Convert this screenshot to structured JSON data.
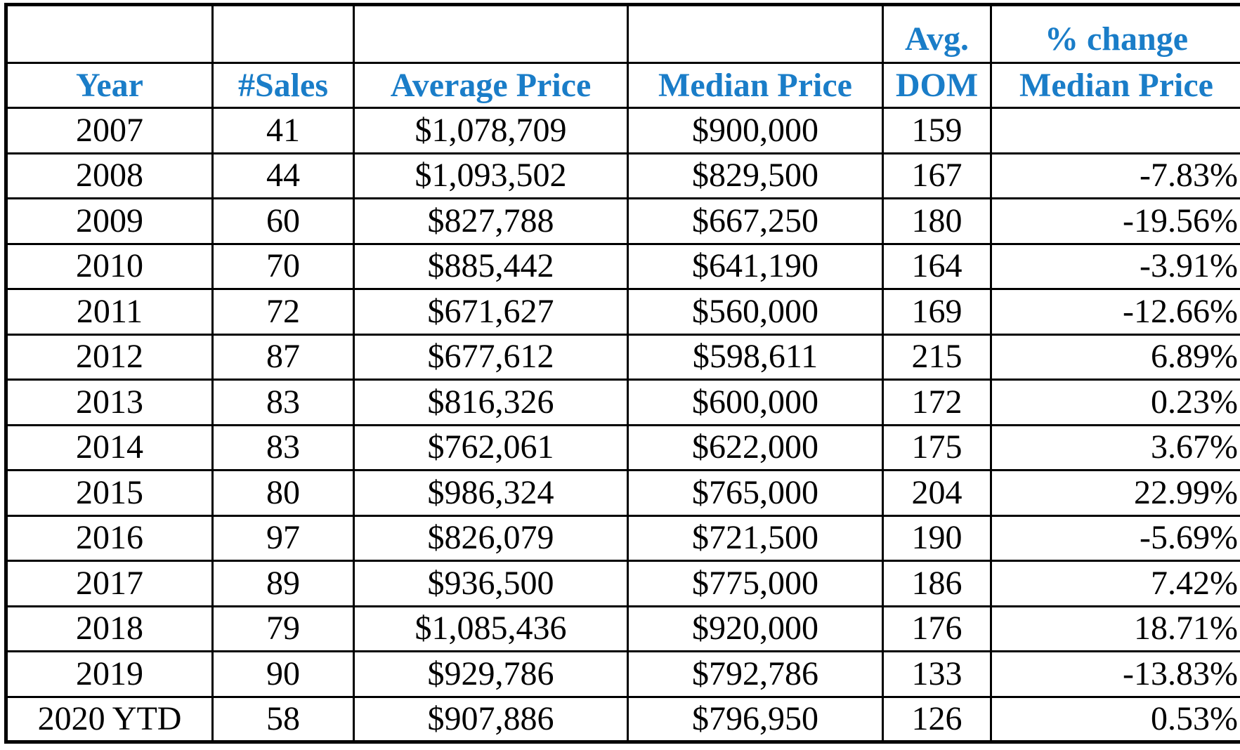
{
  "table": {
    "header_top": {
      "dom": "Avg.",
      "pct_change": "% change"
    },
    "header": {
      "year": "Year",
      "sales": "#Sales",
      "average_price": "Average Price",
      "median_price": "Median Price",
      "dom": "DOM",
      "pct_change": "Median Price"
    },
    "rows": [
      {
        "year": "2007",
        "sales": "41",
        "average_price": "$1,078,709",
        "median_price": "$900,000",
        "dom": "159",
        "pct_change": ""
      },
      {
        "year": "2008",
        "sales": "44",
        "average_price": "$1,093,502",
        "median_price": "$829,500",
        "dom": "167",
        "pct_change": "-7.83%"
      },
      {
        "year": "2009",
        "sales": "60",
        "average_price": "$827,788",
        "median_price": "$667,250",
        "dom": "180",
        "pct_change": "-19.56%"
      },
      {
        "year": "2010",
        "sales": "70",
        "average_price": "$885,442",
        "median_price": "$641,190",
        "dom": "164",
        "pct_change": "-3.91%"
      },
      {
        "year": "2011",
        "sales": "72",
        "average_price": "$671,627",
        "median_price": "$560,000",
        "dom": "169",
        "pct_change": "-12.66%"
      },
      {
        "year": "2012",
        "sales": "87",
        "average_price": "$677,612",
        "median_price": "$598,611",
        "dom": "215",
        "pct_change": "6.89%"
      },
      {
        "year": "2013",
        "sales": "83",
        "average_price": "$816,326",
        "median_price": "$600,000",
        "dom": "172",
        "pct_change": "0.23%"
      },
      {
        "year": "2014",
        "sales": "83",
        "average_price": "$762,061",
        "median_price": "$622,000",
        "dom": "175",
        "pct_change": "3.67%"
      },
      {
        "year": "2015",
        "sales": "80",
        "average_price": "$986,324",
        "median_price": "$765,000",
        "dom": "204",
        "pct_change": "22.99%"
      },
      {
        "year": "2016",
        "sales": "97",
        "average_price": "$826,079",
        "median_price": "$721,500",
        "dom": "190",
        "pct_change": "-5.69%"
      },
      {
        "year": "2017",
        "sales": "89",
        "average_price": "$936,500",
        "median_price": "$775,000",
        "dom": "186",
        "pct_change": "7.42%"
      },
      {
        "year": "2018",
        "sales": "79",
        "average_price": "$1,085,436",
        "median_price": "$920,000",
        "dom": "176",
        "pct_change": "18.71%"
      },
      {
        "year": "2019",
        "sales": "90",
        "average_price": "$929,786",
        "median_price": "$792,786",
        "dom": "133",
        "pct_change": "-13.83%"
      },
      {
        "year": "2020 YTD",
        "sales": "58",
        "average_price": "$907,886",
        "median_price": "$796,950",
        "dom": "126",
        "pct_change": "0.53%"
      }
    ],
    "colors": {
      "header_text": "#1a7dc8",
      "body_text": "#000000",
      "border": "#000000"
    }
  }
}
